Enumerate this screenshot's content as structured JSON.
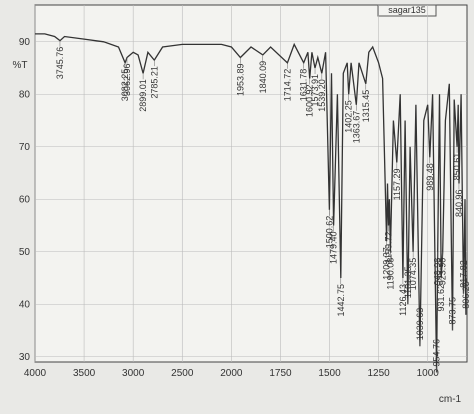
{
  "chart_data": {
    "type": "line",
    "title": "sagar135",
    "ylabel": "%T",
    "xlabel": "cm-1",
    "x_scale_change": 2000,
    "xlim": [
      4000,
      800
    ],
    "xticks": [
      4000,
      3500,
      3000,
      2500,
      2000,
      1750,
      1500,
      1250,
      1000
    ],
    "ylim": [
      29,
      97
    ],
    "yticks": [
      30,
      40,
      50,
      60,
      70,
      80,
      90
    ],
    "grid": true,
    "series": [
      {
        "name": "sagar135",
        "color": "#333333",
        "x": [
          4000,
          3900,
          3800,
          3745.76,
          3700,
          3500,
          3300,
          3150,
          3082.25,
          3062.96,
          3000,
          2950,
          2899.01,
          2850,
          2785.21,
          2700,
          2500,
          2300,
          2100,
          2000,
          1953.89,
          1900,
          1840.09,
          1800,
          1714.72,
          1680,
          1631.78,
          1610,
          1600.92,
          1590,
          1573.91,
          1560,
          1539.2,
          1520,
          1500.62,
          1490,
          1479.4,
          1460,
          1442.75,
          1430,
          1410,
          1402.25,
          1390,
          1363.67,
          1350,
          1315.45,
          1300,
          1280,
          1250,
          1230,
          1209.37,
          1205,
          1199.72,
          1195,
          1190.08,
          1175,
          1157.29,
          1140,
          1126.43,
          1115,
          1101.35,
          1090,
          1074.35,
          1060,
          1039.63,
          1020,
          1000,
          989.48,
          975,
          954.76,
          948.98,
          940,
          931.62,
          923.9,
          910,
          890,
          873.75,
          865,
          850.61,
          845,
          840.96,
          830,
          817.82,
          810,
          806.25
        ],
        "values": [
          91.5,
          91.5,
          91,
          90.2,
          91,
          90.5,
          90,
          89,
          86,
          87,
          88,
          87.5,
          84,
          88,
          86.5,
          89,
          89.5,
          89.5,
          89.5,
          89,
          87,
          89,
          87.5,
          89,
          86,
          89.5,
          86,
          88,
          83,
          88,
          85,
          87,
          84,
          88,
          58,
          84,
          55,
          80,
          45,
          84,
          86,
          80,
          86,
          78,
          86,
          82,
          88,
          89,
          86,
          83,
          52,
          63,
          55,
          60,
          50,
          75,
          67,
          80,
          45,
          75,
          40,
          70,
          50,
          78,
          32,
          75,
          78,
          68,
          80,
          27,
          50,
          80,
          45,
          50,
          75,
          82,
          35,
          79,
          70,
          78,
          63,
          80,
          42,
          60,
          38
        ]
      }
    ],
    "annotations": [
      {
        "value": 3745.76,
        "label": "3745.76"
      },
      {
        "value": 3082.25,
        "label": "3082.25"
      },
      {
        "value": 3062.96,
        "label": "3062.96"
      },
      {
        "value": 2899.01,
        "label": "2899.01"
      },
      {
        "value": 2785.21,
        "label": "2785.21"
      },
      {
        "value": 1953.89,
        "label": "1953.89"
      },
      {
        "value": 1840.09,
        "label": "1840.09"
      },
      {
        "value": 1714.72,
        "label": "1714.72"
      },
      {
        "value": 1631.78,
        "label": "1631.78"
      },
      {
        "value": 1600.92,
        "label": "1600.92"
      },
      {
        "value": 1573.91,
        "label": "1573.91"
      },
      {
        "value": 1539.2,
        "label": "1539.20"
      },
      {
        "value": 1500.62,
        "label": "1500.62"
      },
      {
        "value": 1479.4,
        "label": "1479.40"
      },
      {
        "value": 1442.75,
        "label": "1442.75"
      },
      {
        "value": 1402.25,
        "label": "1402.25"
      },
      {
        "value": 1363.67,
        "label": "1363.67"
      },
      {
        "value": 1315.45,
        "label": "1315.45"
      },
      {
        "value": 1209.37,
        "label": "1209.37"
      },
      {
        "value": 1199.72,
        "label": "1199.72"
      },
      {
        "value": 1190.08,
        "label": "1190.08"
      },
      {
        "value": 1157.29,
        "label": "1157.29"
      },
      {
        "value": 1126.43,
        "label": "1126.43"
      },
      {
        "value": 1101.35,
        "label": "1101.35"
      },
      {
        "value": 1074.35,
        "label": "1074.35"
      },
      {
        "value": 1039.63,
        "label": "1039.63"
      },
      {
        "value": 989.48,
        "label": "989.48"
      },
      {
        "value": 954.76,
        "label": "954.76"
      },
      {
        "value": 948.98,
        "label": "948.98"
      },
      {
        "value": 931.62,
        "label": "931.62"
      },
      {
        "value": 923.9,
        "label": "923.90"
      },
      {
        "value": 873.75,
        "label": "873.75"
      },
      {
        "value": 850.61,
        "label": "850.61"
      },
      {
        "value": 840.96,
        "label": "840.96"
      },
      {
        "value": 817.82,
        "label": "817.82"
      },
      {
        "value": 806.25,
        "label": "806.25"
      }
    ]
  }
}
